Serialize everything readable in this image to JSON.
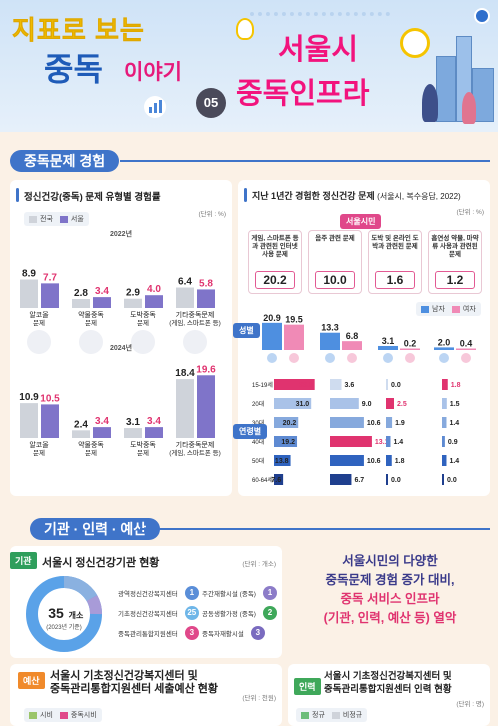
{
  "header": {
    "line1": "지표로 보는",
    "line2": "중독",
    "line3": "이야기",
    "number": "05",
    "main_line1": "서울시",
    "main_line2": "중독인프라"
  },
  "section1": {
    "title": "중독문제 경험",
    "left_panel": {
      "title": "정신건강(중독) 문제 유형별 경험률",
      "unit": "(단위 : %)",
      "legend": [
        "전국",
        "서울"
      ],
      "year_labels": [
        "2022년",
        "2024년"
      ]
    },
    "right_panel": {
      "title": "지난 1년간 경험한 정신건강 문제",
      "title_note": "(서울시, 복수응답, 2022)",
      "unit": "(단위 : %)",
      "seoul_label": "서울시민",
      "legend": [
        "남자",
        "여자"
      ],
      "gender_label": "성별",
      "age_label": "연령별"
    }
  },
  "section2": {
    "title": "기관 · 인력 · 예산",
    "institutions": {
      "tag": "기관",
      "title": "서울시 정신건강기관 현황",
      "unit": "(단위 : 개소)",
      "total": "35",
      "total_unit": "개소",
      "total_note": "(2023년 기준)",
      "rows": [
        {
          "label": "광역정신건강복지센터",
          "count": "1"
        },
        {
          "label": "기초정신건강복지센터",
          "count": "25"
        },
        {
          "label": "중독관리통합지원센터",
          "count": "3"
        },
        {
          "label": "주간재활시설 (중독)",
          "count": "1"
        },
        {
          "label": "공동생활가정 (중독)",
          "count": "2"
        },
        {
          "label": "중독자재활시설",
          "count": "3"
        }
      ]
    },
    "message": {
      "line1": "서울시민의 다양한",
      "line2": "중독문제 경험 증가 대비,",
      "line3": "중독 서비스 인프라",
      "line4": "(기관, 인력, 예산 등) 열악"
    },
    "budget": {
      "tag": "예산",
      "title_line1": "서울시 기초정신건강복지센터 및",
      "title_line2": "중독관리통합지원센터 세출예산 현황",
      "unit": "(단위 : 천원)",
      "legend": [
        "시비",
        "중독시비"
      ]
    },
    "staff": {
      "tag": "인력",
      "title_line1": "서울시 기초정신건강복지센터 및",
      "title_line2": "중독관리통합지원센터 인력 현황",
      "unit": "(단위 : 명)",
      "legend": [
        "정규",
        "비정규"
      ]
    }
  },
  "chart_data": [
    {
      "type": "bar",
      "title": "정신건강(중독) 문제 유형별 경험률",
      "subtitle": "2022년",
      "categories": [
        "알코올 문제",
        "약물중독 문제",
        "도박중독 문제",
        "기타중독문제 (게임, 스마트폰 등)"
      ],
      "series": [
        {
          "name": "전국",
          "values": [
            8.9,
            2.8,
            2.9,
            6.4
          ]
        },
        {
          "name": "서울",
          "values": [
            7.7,
            3.4,
            4.0,
            5.8
          ]
        }
      ],
      "colors": {
        "전국": "#cfd3da",
        "서울": "#7f74c9"
      }
    },
    {
      "type": "bar",
      "title": "정신건강(중독) 문제 유형별 경험률",
      "subtitle": "2024년",
      "categories": [
        "알코올 문제",
        "약물중독 문제",
        "도박중독 문제",
        "기타중독문제 (게임, 스마트폰 등)"
      ],
      "series": [
        {
          "name": "전국",
          "values": [
            10.9,
            2.4,
            3.1,
            18.4
          ]
        },
        {
          "name": "서울",
          "values": [
            10.5,
            3.4,
            3.4,
            19.6
          ]
        }
      ],
      "colors": {
        "전국": "#cfd3da",
        "서울": "#7f74c9"
      }
    },
    {
      "type": "table",
      "title": "지난 1년간 경험한 정신건강 문제",
      "categories": [
        "게임, 스마트폰 등과 관련된 인터넷 사용 문제",
        "음주 관련 문제",
        "도박 및 온라인 도박과 관련된 문제",
        "흡연성 약물, 마약류 사용과 관련된 문제"
      ],
      "seoul_values": [
        20.2,
        10.0,
        1.6,
        1.2
      ],
      "gender": {
        "series": [
          {
            "name": "남자",
            "values": [
              20.9,
              13.3,
              3.1,
              2.0
            ]
          },
          {
            "name": "여자",
            "values": [
              19.5,
              6.8,
              0.2,
              0.4
            ]
          }
        ]
      },
      "age_groups": [
        "15-19세",
        "20대",
        "30대",
        "40대",
        "50대",
        "60-64세"
      ],
      "age_values": [
        [
          33.9,
          31.0,
          20.2,
          19.2,
          13.8,
          7.6
        ],
        [
          3.6,
          9.0,
          10.6,
          13.1,
          10.6,
          6.7
        ],
        [
          0.0,
          2.5,
          1.9,
          1.4,
          1.8,
          0.0
        ],
        [
          1.8,
          1.5,
          1.4,
          0.9,
          1.4,
          0.0
        ]
      ]
    }
  ]
}
